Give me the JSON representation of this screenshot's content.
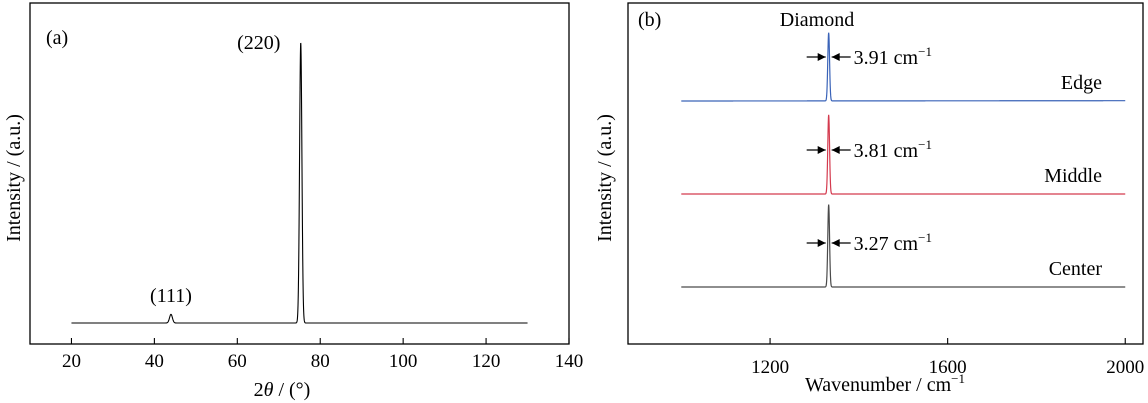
{
  "chart_data": [
    {
      "type": "line",
      "panel_label": "(a)",
      "xlabel_prefix": "2",
      "xlabel_symbol": "θ",
      "xlabel_suffix": " / (°)",
      "ylabel": "Intensity / (a.u.)",
      "xlim": [
        10,
        140
      ],
      "xticks": [
        20,
        40,
        60,
        80,
        100,
        120,
        140
      ],
      "y_ticks_shown": false,
      "grid": false,
      "series": [
        {
          "color": "#000000",
          "x_range": [
            20,
            130
          ],
          "baseline": 0.03,
          "peaks": [
            {
              "label": "(111)",
              "x": 44.0,
              "height": 0.06,
              "width": 0.35
            },
            {
              "label": "(220)",
              "x": 75.3,
              "height": 1.0,
              "width": 0.28
            }
          ]
        }
      ],
      "annotations": [
        {
          "text": "(111)",
          "x": 44.0
        },
        {
          "text": "(220)",
          "x": 75.3
        }
      ]
    },
    {
      "type": "line",
      "panel_label": "(b)",
      "title": "Diamond",
      "xlabel": "Wavenumber / cm",
      "xlabel_sup": "−1",
      "ylabel": "Intensity / (a.u.)",
      "xlim": [
        880,
        2040
      ],
      "xticks": [
        1200,
        1600,
        2000
      ],
      "y_ticks_shown": false,
      "grid": false,
      "x_range": [
        1000,
        2000
      ],
      "peak_position": 1332,
      "series": [
        {
          "name": "Edge",
          "color": "#3a63b8",
          "fwhm_label": "3.91 cm",
          "fwhm_sup": "−1",
          "offset": 2,
          "baseline_slope": 0.006,
          "peak_height": 0.62
        },
        {
          "name": "Middle",
          "color": "#d43a4e",
          "fwhm_label": "3.81 cm",
          "fwhm_sup": "−1",
          "offset": 1,
          "baseline_slope": 0.0,
          "peak_height": 0.72
        },
        {
          "name": "Center",
          "color": "#4a4a4a",
          "fwhm_label": "3.27 cm",
          "fwhm_sup": "−1",
          "offset": 0,
          "baseline_slope": 0.0,
          "peak_height": 0.75
        }
      ]
    }
  ]
}
